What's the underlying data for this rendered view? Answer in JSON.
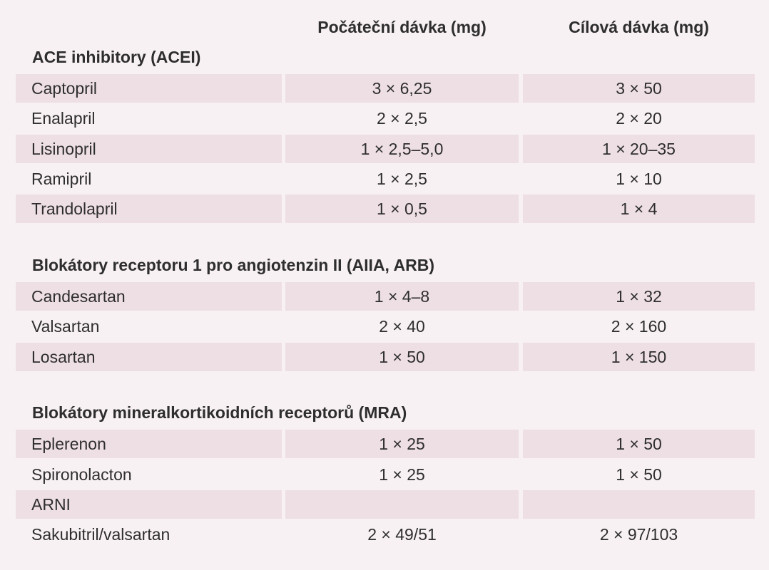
{
  "header": [
    "Počáteční dávka (mg)",
    "Cílová dávka (mg)"
  ],
  "sections": [
    {
      "title": "ACE inhibitory (ACEI)",
      "rows": [
        {
          "drug": "Captopril",
          "start": "3 × 6,25",
          "target": "3 × 50"
        },
        {
          "drug": "Enalapril",
          "start": "2 × 2,5",
          "target": "2 × 20"
        },
        {
          "drug": "Lisinopril",
          "start": "1 × 2,5–5,0",
          "target": "1 × 20–35"
        },
        {
          "drug": "Ramipril",
          "start": "1 × 2,5",
          "target": "1 × 10"
        },
        {
          "drug": "Trandolapril",
          "start": "1 × 0,5",
          "target": "1 × 4"
        }
      ]
    },
    {
      "title": "Blokátory receptoru 1 pro angiotenzin II (AIIA, ARB)",
      "rows": [
        {
          "drug": "Candesartan",
          "start": "1 × 4–8",
          "target": "1 × 32"
        },
        {
          "drug": "Valsartan",
          "start": "2 × 40",
          "target": "2 × 160"
        },
        {
          "drug": "Losartan",
          "start": "1 × 50",
          "target": "1 × 150"
        }
      ]
    },
    {
      "title": "Blokátory mineralkortikoidních receptorů (MRA)",
      "rows": [
        {
          "drug": "Eplerenon",
          "start": "1 × 25",
          "target": "1 × 50"
        },
        {
          "drug": "Spironolacton",
          "start": "1 × 25",
          "target": "1 × 50"
        },
        {
          "drug": "ARNI"
        },
        {
          "drug": "Sakubitril/valsartan",
          "start": "2 × 49/51",
          "target": "2 × 97/103"
        }
      ]
    }
  ]
}
